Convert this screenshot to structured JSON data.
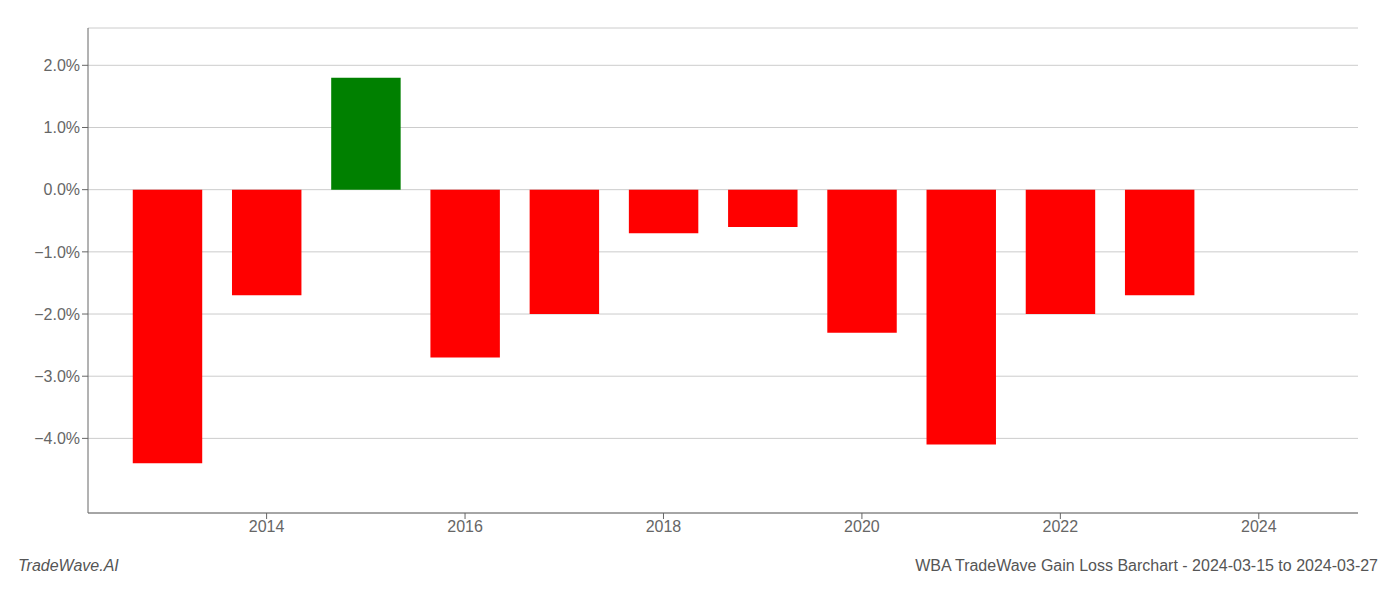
{
  "chart_data": {
    "type": "bar",
    "title": "WBA TradeWave Gain Loss Barchart - 2024-03-15 to 2024-03-27",
    "annotations": [
      "TradeWave.AI"
    ],
    "x": [
      2013,
      2014,
      2015,
      2016,
      2017,
      2018,
      2019,
      2020,
      2021,
      2022,
      2023
    ],
    "values": [
      -0.044,
      -0.017,
      0.018,
      -0.027,
      -0.02,
      -0.007,
      -0.006,
      -0.023,
      -0.041,
      -0.02,
      -0.017
    ],
    "colors": [
      "red",
      "red",
      "green",
      "red",
      "red",
      "red",
      "red",
      "red",
      "red",
      "red",
      "red"
    ],
    "xlim": [
      2012.2,
      2025.0
    ],
    "xticks": [
      2014,
      2016,
      2018,
      2020,
      2022,
      2024
    ],
    "ylim": [
      -0.052,
      0.026
    ],
    "yticks": [
      {
        "value": -0.04,
        "label": "−4.0%"
      },
      {
        "value": -0.03,
        "label": "−3.0%"
      },
      {
        "value": -0.02,
        "label": "−2.0%"
      },
      {
        "value": -0.01,
        "label": "−1.0%"
      },
      {
        "value": 0.0,
        "label": "0.0%"
      },
      {
        "value": 0.01,
        "label": "1.0%"
      },
      {
        "value": 0.02,
        "label": "2.0%"
      }
    ],
    "grid": true
  }
}
